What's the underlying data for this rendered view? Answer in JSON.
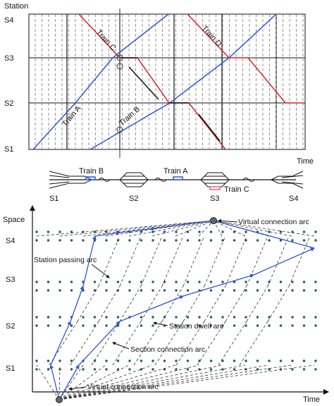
{
  "colors": {
    "blue": "#2f55d4",
    "red": "#e0202a",
    "black": "#111111",
    "dot": "#1f5f66",
    "pink": "#f06080"
  },
  "top_chart": {
    "y_title": "Station",
    "x_title": "Time",
    "stations": [
      "S1",
      "S2",
      "S3",
      "S4"
    ],
    "trains": [
      {
        "name": "Train A",
        "color": "blue"
      },
      {
        "name": "Train B",
        "color": "blue"
      },
      {
        "name": "Train C",
        "color": "red"
      },
      {
        "name": "Train D",
        "color": "red"
      }
    ]
  },
  "track_diagram": {
    "stations": [
      "S1",
      "S2",
      "S3",
      "S4"
    ],
    "train_labels": [
      "Train B",
      "Train A",
      "Train C"
    ]
  },
  "network": {
    "y_title": "Space",
    "x_title": "Time",
    "stations": [
      "S1",
      "S2",
      "S3",
      "S4"
    ],
    "annotations": {
      "virtual_top": "Virtual connection arc",
      "station_passing": "Station passing arc",
      "station_dwell": "Station dwell arc",
      "section_connection": "Section connection arc",
      "virtual_bottom": "Virtual connection arc"
    }
  }
}
